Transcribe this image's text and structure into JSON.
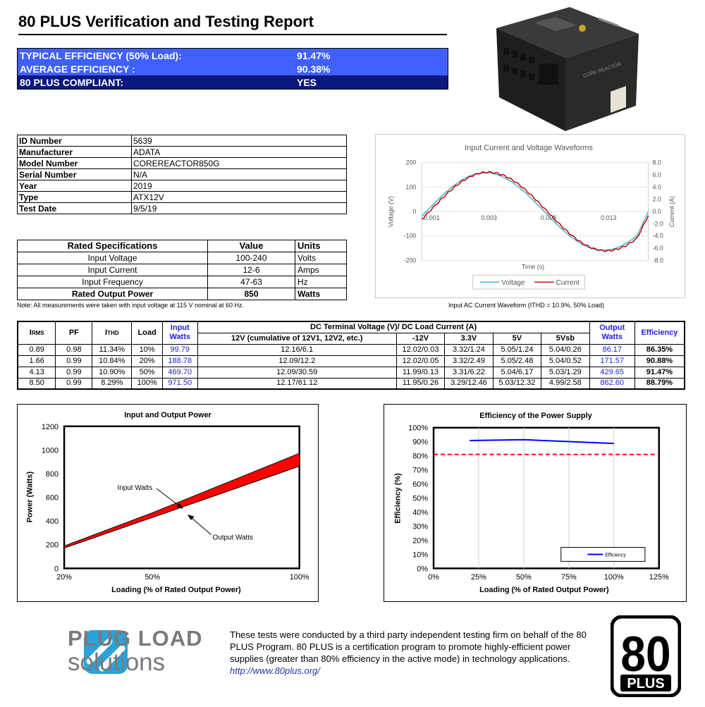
{
  "report": {
    "title": "80 PLUS Verification and Testing Report",
    "summary": [
      {
        "label": "TYPICAL EFFICIENCY (50% Load):",
        "value": "91.47%"
      },
      {
        "label": "AVERAGE EFFICIENCY :",
        "value": "90.38%"
      },
      {
        "label": "80 PLUS COMPLIANT:",
        "value": "YES"
      }
    ]
  },
  "product": {
    "brand": "CORE REACTOR"
  },
  "info": [
    {
      "label": "ID Number",
      "value": "5639"
    },
    {
      "label": "Manufacturer",
      "value": "ADATA"
    },
    {
      "label": "Model Number",
      "value": "COREREACTOR850G"
    },
    {
      "label": "Serial Number",
      "value": "N/A"
    },
    {
      "label": "Year",
      "value": "2019"
    },
    {
      "label": "Type",
      "value": "ATX12V"
    },
    {
      "label": "Test Date",
      "value": "9/5/19"
    }
  ],
  "rated": {
    "headers": [
      "Rated Specifications",
      "Value",
      "Units"
    ],
    "rows": [
      {
        "spec": "Input Voltage",
        "value": "100-240",
        "unit": "Volts"
      },
      {
        "spec": "Input Current",
        "value": "12-6",
        "unit": "Amps"
      },
      {
        "spec": "Input Frequency",
        "value": "47-63",
        "unit": "Hz"
      },
      {
        "spec": "Rated Output Power",
        "value": "850",
        "unit": "Watts"
      }
    ]
  },
  "note": "Note: All measurements were taken with input voltage at 115 V nominal at 60 Hz.",
  "wave_caption": "Input AC Current Waveform (ITHD = 10.9%, 50% Load)",
  "table": {
    "h_irms": "I",
    "h_irms_sub": "RMS",
    "h_pf": "PF",
    "h_ithd": "I",
    "h_ithd_sub": "THD",
    "h_load": "Load",
    "h_input": "Input Watts",
    "h_dc": "DC Terminal Voltage (V)/ DC Load Current (A)",
    "h_output": "Output Watts",
    "h_eff": "Efficiency",
    "h_12v": "12V (cumulative of 12V1, 12V2, etc.)",
    "h_m12": "-12V",
    "h_33": "3.3V",
    "h_5": "5V",
    "h_5sb": "5Vsb",
    "rows": [
      {
        "irms": "0.89",
        "pf": "0.98",
        "ithd": "11.34%",
        "load": "10%",
        "input": "99.79",
        "v12": "12.16/6.1",
        "m12": "12.02/0.03",
        "v33": "3.32/1.24",
        "v5": "5.05/1.24",
        "v5sb": "5.04/0.26",
        "output": "86.17",
        "eff": "86.35%"
      },
      {
        "irms": "1.66",
        "pf": "0.99",
        "ithd": "10.84%",
        "load": "20%",
        "input": "188.78",
        "v12": "12.09/12.2",
        "m12": "12.02/0.05",
        "v33": "3.32/2.49",
        "v5": "5.05/2.48",
        "v5sb": "5.04/0.52",
        "output": "171.57",
        "eff": "90.88%"
      },
      {
        "irms": "4.13",
        "pf": "0.99",
        "ithd": "10.90%",
        "load": "50%",
        "input": "469.70",
        "v12": "12.09/30.59",
        "m12": "11.99/0.13",
        "v33": "3.31/6.22",
        "v5": "5.04/6.17",
        "v5sb": "5.03/1.29",
        "output": "429.65",
        "eff": "91.47%"
      },
      {
        "irms": "8.50",
        "pf": "0.99",
        "ithd": "8.29%",
        "load": "100%",
        "input": "971.50",
        "v12": "12.17/61.12",
        "m12": "11.95/0.26",
        "v33": "3.29/12.46",
        "v5": "5.03/12.32",
        "v5sb": "4.99/2.58",
        "output": "862.60",
        "eff": "88.79%"
      }
    ]
  },
  "chart_data": [
    {
      "type": "line",
      "title": "Input Current and Voltage Waveforms",
      "xlabel": "Time (s)",
      "ylabel": "Voltage (V)",
      "y2label": "Current (A)",
      "xticks": [
        "-0.001",
        "0.003",
        "0.008",
        "0.013"
      ],
      "yticks": [
        "200",
        "100",
        "0",
        "-100",
        "-200"
      ],
      "y2ticks": [
        "8.0",
        "6.0",
        "4.0",
        "2.0",
        "0.0",
        "-2.0",
        "-4.0",
        "-6.0",
        "-8.0"
      ],
      "ylim": [
        -200,
        200
      ],
      "y2lim": [
        -8,
        8
      ],
      "legend": [
        "Voltage",
        "Current"
      ],
      "legend_position": "bottom",
      "colors": {
        "voltage": "#4bacc6",
        "current": "#c00000"
      }
    },
    {
      "type": "area",
      "title": "Input and Output Power",
      "xlabel": "Loading (% of Rated Output Power)",
      "ylabel": "Power (Watts)",
      "x": [
        20,
        50,
        100
      ],
      "xticks": [
        "20%",
        "50%",
        "100%"
      ],
      "yticks": [
        "0",
        "200",
        "400",
        "600",
        "800",
        "1000",
        "1200"
      ],
      "ylim": [
        0,
        1200
      ],
      "series": [
        {
          "name": "Input Watts",
          "values": [
            188.78,
            469.7,
            971.5
          ]
        },
        {
          "name": "Output Watts",
          "values": [
            171.57,
            429.65,
            862.6
          ]
        }
      ],
      "annotations": [
        "Input Watts",
        "Output Watts"
      ],
      "fill": "#ff0000"
    },
    {
      "type": "line",
      "title": "Efficiency of the Power Supply",
      "xlabel": "Loading (% of Rated Output Power)",
      "ylabel": "Efficiency (%)",
      "x": [
        20,
        50,
        100
      ],
      "xticks": [
        "0%",
        "25%",
        "50%",
        "75%",
        "100%",
        "125%"
      ],
      "yticks": [
        "0%",
        "10%",
        "20%",
        "30%",
        "40%",
        "50%",
        "60%",
        "70%",
        "80%",
        "90%",
        "100%"
      ],
      "xlim": [
        0,
        125
      ],
      "ylim": [
        0,
        100
      ],
      "series": [
        {
          "name": "Efficiency",
          "values": [
            90.88,
            91.47,
            88.79
          ]
        }
      ],
      "threshold": 81,
      "legend_position": "bottom-right",
      "colors": {
        "series": "#0000ff",
        "threshold": "#ff0000"
      }
    }
  ],
  "footer": {
    "logo_line1": "PLUG LOAD",
    "logo_line2": "solutions",
    "disclaimer": "These tests were conducted by a third party independent testing firm on behalf of the 80 PLUS Program. 80 PLUS is a certification program to promote highly-efficient power supplies (greater than 80% efficiency in the active mode) in technology applications.",
    "link": "http://www.80plus.org/",
    "badge_number": "80",
    "badge_text": "PLUS"
  }
}
